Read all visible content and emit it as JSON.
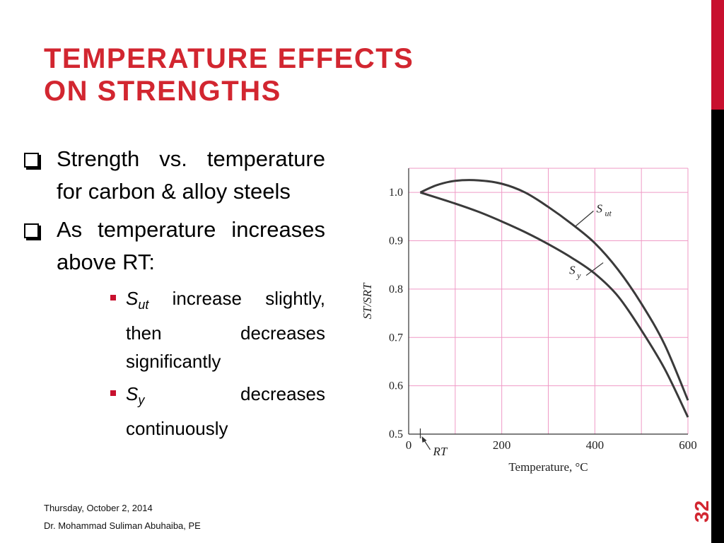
{
  "slide": {
    "title_line1": "Temperature Effects",
    "title_line2": "on Strengths",
    "bullets": [
      {
        "text": "Strength vs. temperature for carbon & alloy steels"
      },
      {
        "text": "As temperature increases above RT:"
      }
    ],
    "sub_bullets": [
      {
        "symbol": "S",
        "subscript": "ut",
        "text": " increase slightly, then decreases significantly"
      },
      {
        "symbol": "S",
        "subscript": "y",
        "text": " decreases continuously"
      }
    ],
    "footer_date": "Thursday, October 2, 2014",
    "footer_author": "Dr. Mohammad Suliman Abuhaiba, PE",
    "page_number": "32"
  },
  "colors": {
    "accent_red": "#d22630",
    "grid_pink": "#ef9ac6",
    "curve": "#3a3a3a"
  },
  "chart_data": {
    "type": "line",
    "xlabel": "Temperature, °C",
    "ylabel": "ST/SRT",
    "xlim": [
      0,
      600
    ],
    "ylim": [
      0.5,
      1.05
    ],
    "x_ticks": [
      "0",
      "200",
      "400",
      "600"
    ],
    "y_ticks": [
      "0.5",
      "0.6",
      "0.7",
      "0.8",
      "0.9",
      "1.0"
    ],
    "grid": true,
    "series": [
      {
        "name": "Sut",
        "x": [
          25,
          60,
          100,
          150,
          200,
          250,
          300,
          350,
          400,
          450,
          500,
          550,
          600
        ],
        "y": [
          1.0,
          1.015,
          1.024,
          1.025,
          1.018,
          1.0,
          0.97,
          0.935,
          0.895,
          0.84,
          0.77,
          0.685,
          0.57
        ]
      },
      {
        "name": "Sy",
        "x": [
          25,
          100,
          150,
          200,
          250,
          300,
          350,
          400,
          450,
          500,
          550,
          600
        ],
        "y": [
          1.0,
          0.977,
          0.96,
          0.94,
          0.918,
          0.893,
          0.865,
          0.832,
          0.785,
          0.715,
          0.635,
          0.535
        ]
      }
    ],
    "annotations": [
      {
        "label": "Sut",
        "symbol": "S",
        "sub": "ut",
        "x": 385,
        "y": 0.95
      },
      {
        "label": "Sy",
        "symbol": "S",
        "sub": "y",
        "x": 345,
        "y": 0.84
      },
      {
        "label": "RT",
        "x": 25,
        "y": 0.5
      }
    ]
  }
}
